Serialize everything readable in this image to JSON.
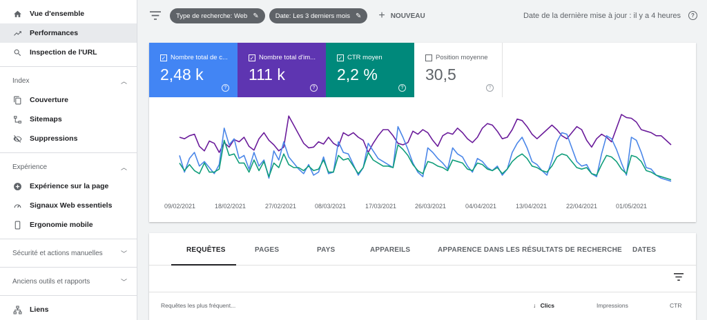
{
  "sidebar": {
    "top_items": [
      {
        "label": "Vue d'ensemble",
        "icon": "home-icon"
      },
      {
        "label": "Performances",
        "icon": "trending-up-icon",
        "active": true
      },
      {
        "label": "Inspection de l'URL",
        "icon": "search-icon"
      }
    ],
    "sections": [
      {
        "title": "Index",
        "items": [
          {
            "label": "Couverture",
            "icon": "copy-icon"
          },
          {
            "label": "Sitemaps",
            "icon": "sitemap-icon"
          },
          {
            "label": "Suppressions",
            "icon": "eye-off-icon"
          }
        ]
      },
      {
        "title": "Expérience",
        "items": [
          {
            "label": "Expérience sur la page",
            "icon": "plus-circle-icon"
          },
          {
            "label": "Signaux Web essentiels",
            "icon": "speed-icon"
          },
          {
            "label": "Ergonomie mobile",
            "icon": "phone-icon"
          }
        ]
      }
    ],
    "collapsed_sections": [
      "Sécurité et actions manuelles",
      "Anciens outils et rapports"
    ],
    "bottom_item": {
      "label": "Liens",
      "icon": "links-icon"
    }
  },
  "topbar": {
    "chip_search_type": "Type de recherche: Web",
    "chip_date": "Date: Les 3 derniers mois",
    "new_label": "NOUVEAU",
    "last_update": "Date de la dernière mise à jour : il y a 4 heures"
  },
  "metrics": [
    {
      "label": "Nombre total de c...",
      "value": "2,48 k",
      "checked": true,
      "color": "#4285f4"
    },
    {
      "label": "Nombre total d'im...",
      "value": "111 k",
      "checked": true,
      "color": "#5e35b1"
    },
    {
      "label": "CTR moyen",
      "value": "2,2 %",
      "checked": true,
      "color": "#00897b"
    },
    {
      "label": "Position moyenne",
      "value": "30,5",
      "checked": false,
      "color": "#ffffff"
    }
  ],
  "chart_data": {
    "type": "line",
    "x_ticks": [
      "09/02/2021",
      "18/02/2021",
      "27/02/2021",
      "08/03/2021",
      "17/03/2021",
      "26/03/2021",
      "04/04/2021",
      "13/04/2021",
      "22/04/2021",
      "01/05/2021"
    ],
    "grid": false,
    "series": [
      {
        "name": "Nombre total d'impressions",
        "color": "#6a1b9a",
        "values": [
          0.6,
          0.58,
          0.62,
          0.64,
          0.48,
          0.42,
          0.55,
          0.52,
          0.4,
          0.53,
          0.47,
          0.57,
          0.54,
          0.6,
          0.48,
          0.43,
          0.58,
          0.66,
          0.56,
          0.5,
          0.42,
          0.47,
          0.88,
          0.76,
          0.64,
          0.52,
          0.46,
          0.47,
          0.54,
          0.51,
          0.6,
          0.52,
          0.48,
          0.66,
          0.62,
          0.66,
          0.6,
          0.56,
          0.4,
          0.52,
          0.62,
          0.7,
          0.7,
          0.62,
          0.52,
          0.5,
          0.53,
          0.68,
          0.64,
          0.7,
          0.66,
          0.56,
          0.48,
          0.62,
          0.66,
          0.64,
          0.72,
          0.66,
          0.58,
          0.53,
          0.6,
          0.72,
          0.78,
          0.76,
          0.68,
          0.58,
          0.6,
          0.7,
          0.84,
          0.82,
          0.74,
          0.64,
          0.58,
          0.64,
          0.7,
          0.76,
          0.7,
          0.62,
          0.58,
          0.66,
          0.74,
          0.7,
          0.56,
          0.47,
          0.58,
          0.64,
          0.6,
          0.54,
          0.72,
          0.9,
          0.86,
          0.85,
          0.8,
          0.7,
          0.68,
          0.66,
          0.62,
          0.62,
          0.56,
          0.5
        ]
      },
      {
        "name": "Nombre total de clics",
        "color": "#4a86e8",
        "values": [
          0.36,
          0.14,
          0.32,
          0.4,
          0.22,
          0.28,
          0.2,
          0.12,
          0.24,
          0.72,
          0.5,
          0.58,
          0.32,
          0.36,
          0.18,
          0.4,
          0.22,
          0.3,
          0.06,
          0.42,
          0.3,
          0.54,
          0.34,
          0.26,
          0.18,
          0.12,
          0.24,
          0.1,
          0.14,
          0.34,
          0.12,
          0.14,
          0.54,
          0.4,
          0.38,
          0.24,
          0.1,
          0.2,
          0.52,
          0.42,
          0.32,
          0.28,
          0.24,
          0.2,
          0.74,
          0.6,
          0.44,
          0.26,
          0.14,
          0.08,
          0.46,
          0.4,
          0.32,
          0.26,
          0.18,
          0.46,
          0.38,
          0.34,
          0.22,
          0.14,
          0.32,
          0.28,
          0.2,
          0.16,
          0.22,
          0.1,
          0.18,
          0.4,
          0.52,
          0.6,
          0.46,
          0.28,
          0.24,
          0.16,
          0.1,
          0.3,
          0.54,
          0.66,
          0.64,
          0.46,
          0.28,
          0.22,
          0.24,
          0.12,
          0.08,
          0.38,
          0.62,
          0.58,
          0.44,
          0.26,
          0.1,
          0.6,
          0.56,
          0.4,
          0.2,
          0.18,
          0.1,
          0.06,
          0.04,
          0.02
        ]
      },
      {
        "name": "CTR moyen",
        "color": "#0f9d7a",
        "values": [
          0.26,
          0.16,
          0.24,
          0.16,
          0.12,
          0.26,
          0.14,
          0.14,
          0.18,
          0.56,
          0.36,
          0.38,
          0.26,
          0.26,
          0.14,
          0.3,
          0.16,
          0.28,
          0.08,
          0.26,
          0.2,
          0.38,
          0.24,
          0.2,
          0.2,
          0.16,
          0.22,
          0.16,
          0.18,
          0.3,
          0.14,
          0.14,
          0.36,
          0.3,
          0.32,
          0.22,
          0.12,
          0.2,
          0.4,
          0.3,
          0.26,
          0.22,
          0.22,
          0.2,
          0.5,
          0.44,
          0.36,
          0.24,
          0.16,
          0.12,
          0.28,
          0.26,
          0.22,
          0.2,
          0.16,
          0.3,
          0.28,
          0.26,
          0.18,
          0.16,
          0.26,
          0.24,
          0.18,
          0.16,
          0.2,
          0.12,
          0.18,
          0.28,
          0.34,
          0.38,
          0.32,
          0.22,
          0.2,
          0.16,
          0.14,
          0.22,
          0.34,
          0.38,
          0.36,
          0.28,
          0.2,
          0.18,
          0.2,
          0.12,
          0.1,
          0.24,
          0.36,
          0.34,
          0.28,
          0.18,
          0.12,
          0.36,
          0.34,
          0.28,
          0.16,
          0.14,
          0.1,
          0.08,
          0.06,
          0.04
        ]
      }
    ]
  },
  "table": {
    "tabs": [
      "REQUÊTES",
      "PAGES",
      "PAYS",
      "APPAREILS",
      "APPARENCE DANS LES RÉSULTATS DE RECHERCHE",
      "DATES"
    ],
    "active_tab": "REQUÊTES",
    "header": {
      "query": "Requêtes les plus fréquent...",
      "clicks": "Clics",
      "impressions": "Impressions",
      "ctr": "CTR"
    }
  }
}
